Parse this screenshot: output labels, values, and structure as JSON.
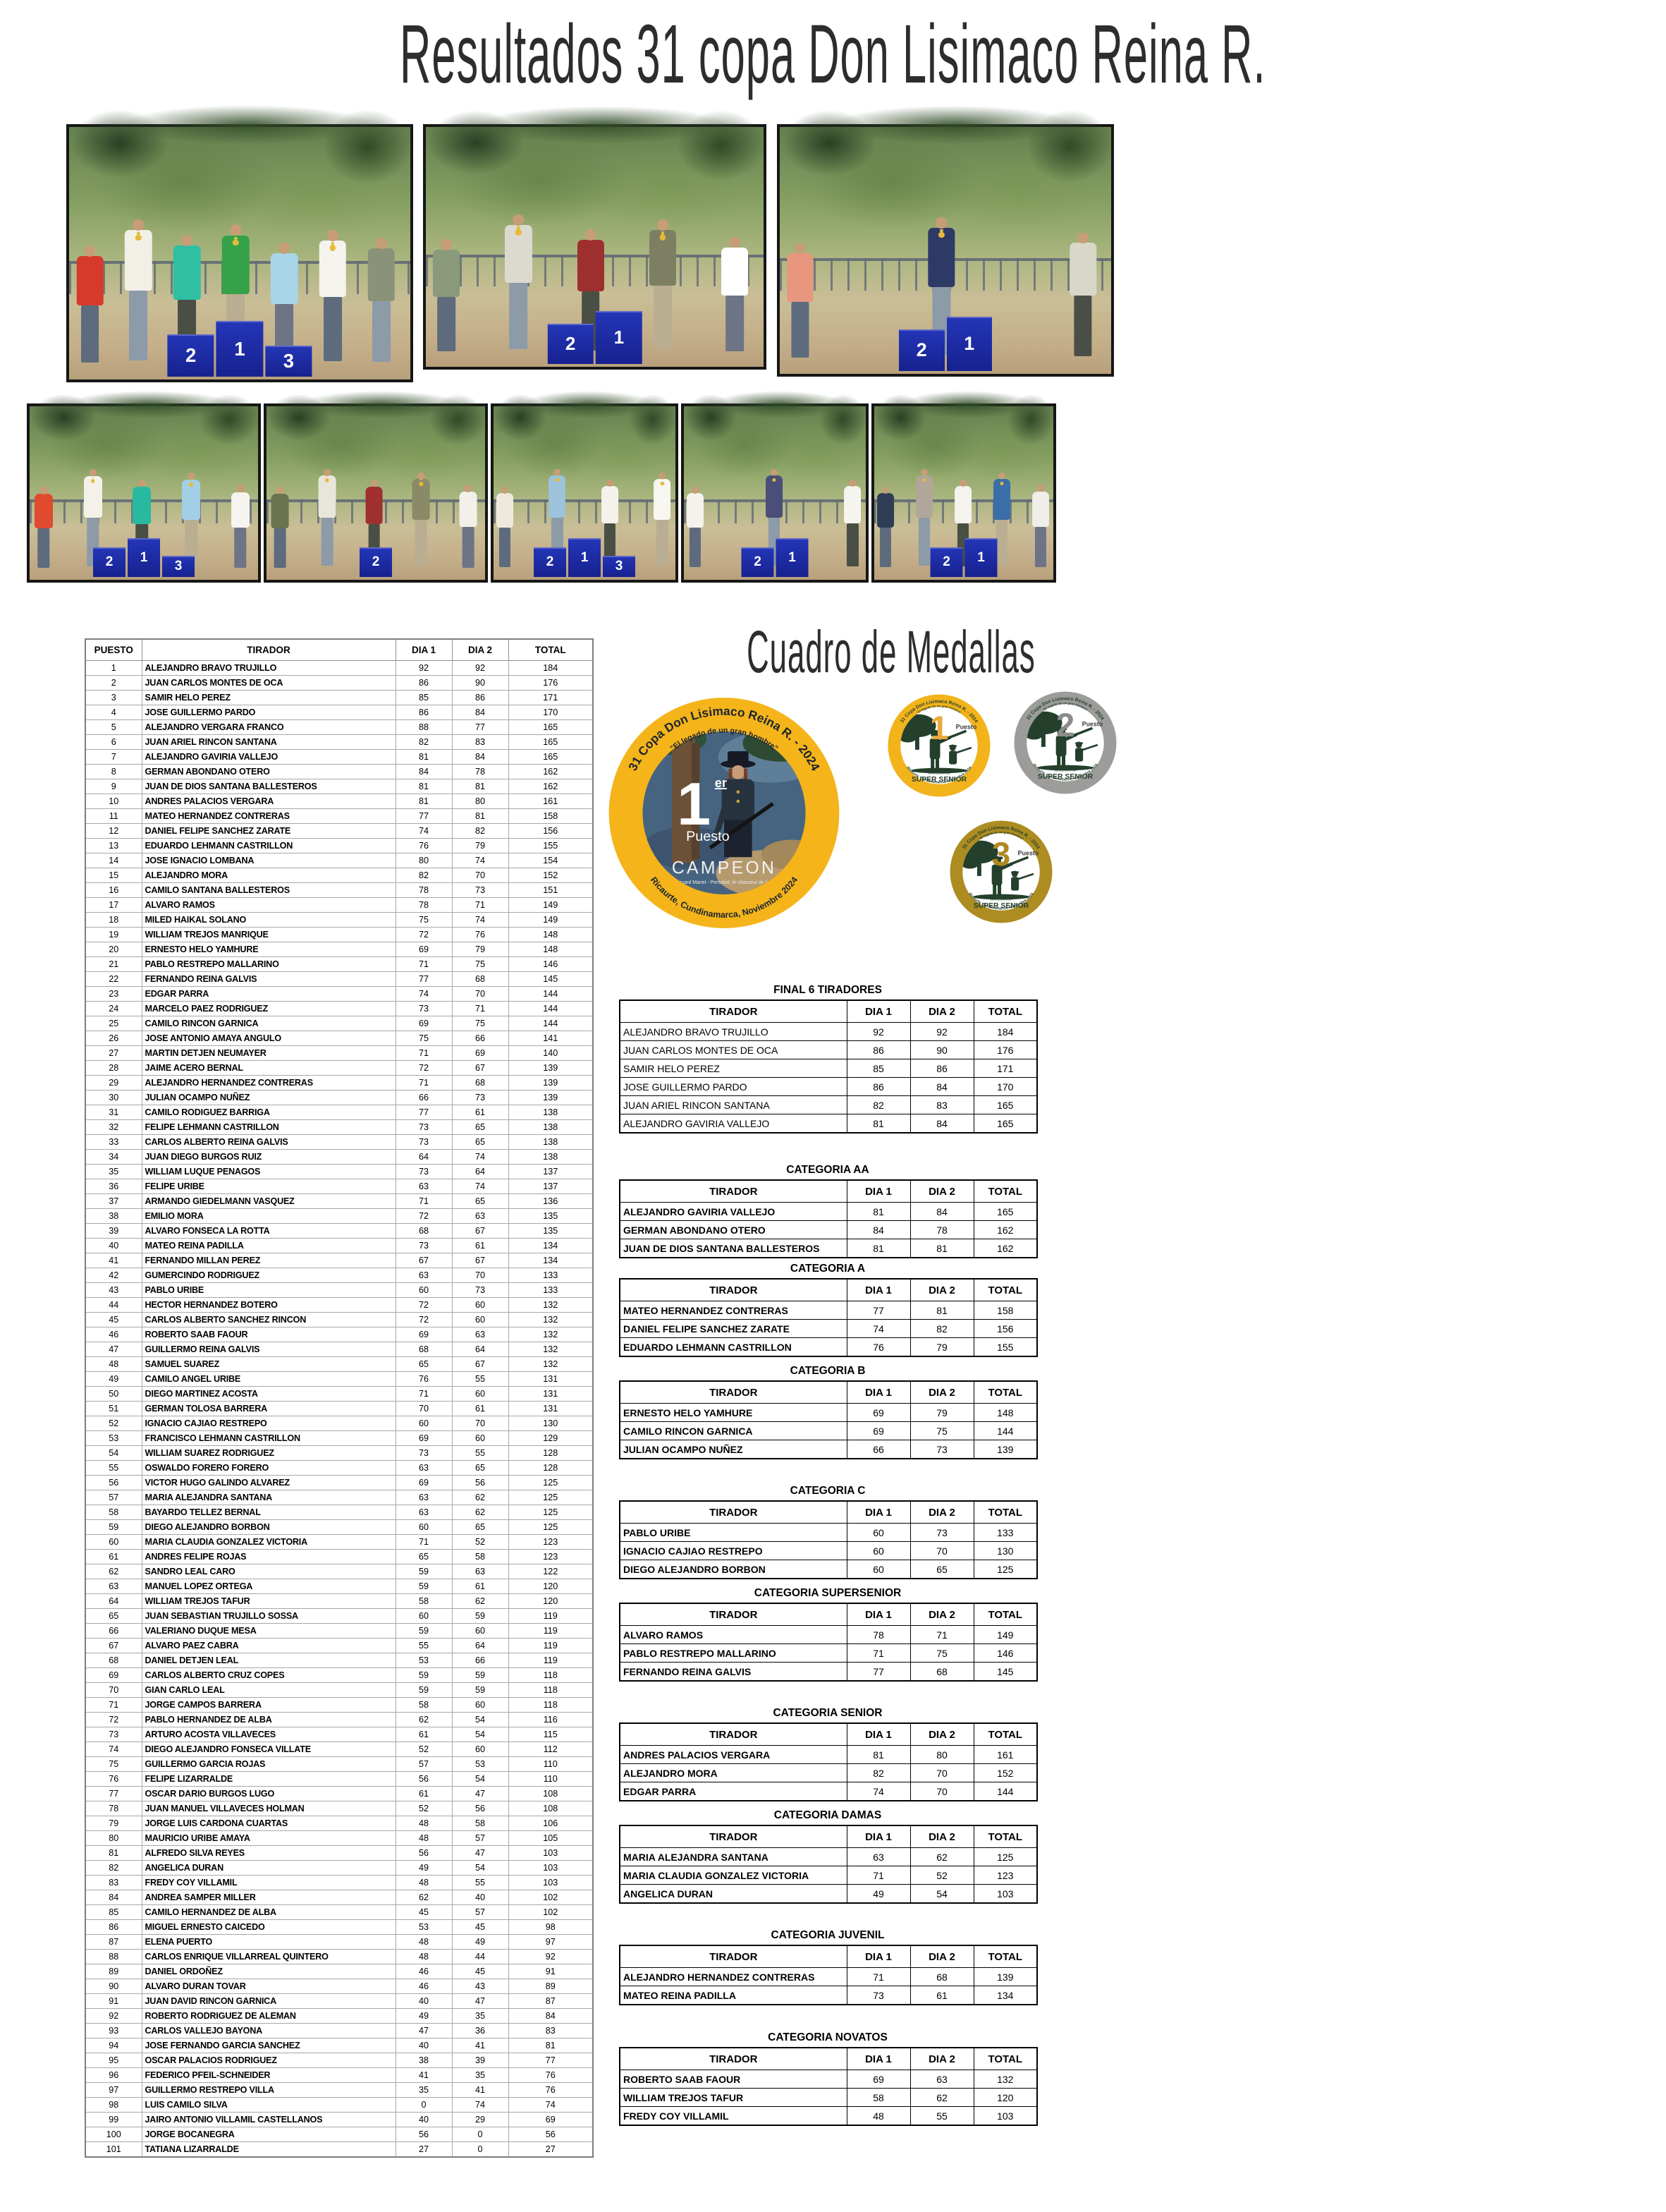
{
  "title": "Resultados 31 copa Don Lisimaco Reina R.",
  "medals_section": {
    "title": "Cuadro de Medallas",
    "big_medal": {
      "ring_text_top": "31 Copa Don Lisimaco Reina R. - 2024",
      "ring_subtitle": "\"El legado de un gran hombre\"",
      "place_number": "1",
      "place_suffix": "er",
      "place_label": "Puesto",
      "champion_label": "CAMPEON",
      "caption": "Édouard Manet - Pertuiset, le chasseur de lions",
      "ring_text_bottom": "Ricaurte, Cundinamarca, Noviembre 2024",
      "ring_color": "#F4B41A"
    },
    "small_medals": [
      {
        "number": "1",
        "label": "Puesto",
        "ring_text_top": "31 Copa Don Lisimaco Reina R. - 2024",
        "ring_subtitle": "\"El legado de un gran hombre\"",
        "category_line1": "CATEGORIA",
        "category_line2": "SUPER SENIOR",
        "ring_text_bottom": "Ricaurte, Cundinamarca, Noviembre 2024",
        "ring_color": "#F2B31B",
        "number_color": "#E9A93C"
      },
      {
        "number": "2",
        "label": "Puesto",
        "ring_text_top": "31 Copa Don Lisimaco Reina R. - 2024",
        "ring_subtitle": "\"El legado de un gran hombre\"",
        "category_line1": "CATEGORIA",
        "category_line2": "SUPER SENIOR",
        "ring_text_bottom": "Ricaurte, Cundinamarca, Noviembre 2024",
        "ring_color": "#9C9C9B",
        "number_color": "#8C8C8B"
      },
      {
        "number": "3",
        "label": "Puesto",
        "ring_text_top": "31 Copa Don Lisimaco Reina R. - 2024",
        "ring_subtitle": "\"El legado de un gran hombre\"",
        "category_line1": "CATEGORIA",
        "category_line2": "SUPER SENIOR",
        "ring_text_bottom": "Ricaurte, Cundinamarca, Noviembre 2024",
        "ring_color": "#AD8C21",
        "number_color": "#B0891F"
      }
    ]
  },
  "photos": {
    "row1": [
      {
        "podium": [
          "2",
          "1",
          "3"
        ],
        "shirts": [
          "#d63a2a",
          "#f2efe6",
          "#2fbfa3",
          "#35a24a",
          "#a8d4e8",
          "#f5f3ee",
          "#8a9379"
        ]
      },
      {
        "podium": [
          "2",
          "1"
        ],
        "shirts": [
          "#8a9a7a",
          "#dcd9cf",
          "#9e2f2f",
          "#7d7f62",
          "#ffffff"
        ]
      },
      {
        "podium": [
          "2",
          "1"
        ],
        "shirts": [
          "#e8967e",
          "#2e3a66",
          "#d8d8c8"
        ]
      }
    ],
    "row2": [
      {
        "podium": [
          "2",
          "1",
          "3"
        ],
        "shirts": [
          "#e04a2f",
          "#f4f1e8",
          "#29b9a0",
          "#a3cfe6",
          "#f6f4ef"
        ]
      },
      {
        "podium": [
          "2"
        ],
        "shirts": [
          "#6b7350",
          "#e8e6da",
          "#a03030",
          "#8a8a68",
          "#f2f0e8"
        ]
      },
      {
        "podium": [
          "2",
          "1",
          "3"
        ],
        "shirts": [
          "#efe9dd",
          "#9cc2dc",
          "#f4f2ea",
          "#f8f6f0"
        ]
      },
      {
        "podium": [
          "2",
          "1"
        ],
        "shirts": [
          "#f4f2ec",
          "#4a4e78",
          "#f6f4ee"
        ]
      },
      {
        "podium": [
          "2",
          "1"
        ],
        "shirts": [
          "#2e3d55",
          "#b0a79a",
          "#f5f3ed",
          "#3a6ea8",
          "#f0eee8"
        ]
      }
    ]
  },
  "main_table": {
    "headers": [
      "PUESTO",
      "TIRADOR",
      "DIA 1",
      "DIA 2",
      "TOTAL"
    ],
    "rows": [
      [
        1,
        "ALEJANDRO BRAVO TRUJILLO",
        92,
        92,
        184
      ],
      [
        2,
        "JUAN CARLOS MONTES DE OCA",
        86,
        90,
        176
      ],
      [
        3,
        "SAMIR HELO PEREZ",
        85,
        86,
        171
      ],
      [
        4,
        "JOSE GUILLERMO PARDO",
        86,
        84,
        170
      ],
      [
        5,
        "ALEJANDRO VERGARA FRANCO",
        88,
        77,
        165
      ],
      [
        6,
        "JUAN ARIEL RINCON SANTANA",
        82,
        83,
        165
      ],
      [
        7,
        "ALEJANDRO GAVIRIA VALLEJO",
        81,
        84,
        165
      ],
      [
        8,
        "GERMAN  ABONDANO OTERO",
        84,
        78,
        162
      ],
      [
        9,
        "JUAN DE DIOS SANTANA BALLESTEROS",
        81,
        81,
        162
      ],
      [
        10,
        "ANDRES PALACIOS VERGARA",
        81,
        80,
        161
      ],
      [
        11,
        "MATEO HERNANDEZ CONTRERAS",
        77,
        81,
        158
      ],
      [
        12,
        "DANIEL FELIPE SANCHEZ ZARATE",
        74,
        82,
        156
      ],
      [
        13,
        "EDUARDO LEHMANN CASTRILLON",
        76,
        79,
        155
      ],
      [
        14,
        "JOSE IGNACIO LOMBANA",
        80,
        74,
        154
      ],
      [
        15,
        "ALEJANDRO MORA",
        82,
        70,
        152
      ],
      [
        16,
        "CAMILO SANTANA BALLESTEROS",
        78,
        73,
        151
      ],
      [
        17,
        "ALVARO RAMOS",
        78,
        71,
        149
      ],
      [
        18,
        "MILED HAIKAL SOLANO",
        75,
        74,
        149
      ],
      [
        19,
        "WILLIAM TREJOS MANRIQUE",
        72,
        76,
        148
      ],
      [
        20,
        "ERNESTO HELO YAMHURE",
        69,
        79,
        148
      ],
      [
        21,
        "PABLO RESTREPO MALLARINO",
        71,
        75,
        146
      ],
      [
        22,
        "FERNANDO REINA GALVIS",
        77,
        68,
        145
      ],
      [
        23,
        "EDGAR PARRA",
        74,
        70,
        144
      ],
      [
        24,
        "MARCELO PAEZ RODRIGUEZ",
        73,
        71,
        144
      ],
      [
        25,
        "CAMILO RINCON GARNICA",
        69,
        75,
        144
      ],
      [
        26,
        "JOSE ANTONIO AMAYA ANGULO",
        75,
        66,
        141
      ],
      [
        27,
        "MARTIN DETJEN NEUMAYER",
        71,
        69,
        140
      ],
      [
        28,
        "JAIME ACERO BERNAL",
        72,
        67,
        139
      ],
      [
        29,
        "ALEJANDRO HERNANDEZ CONTRERAS",
        71,
        68,
        139
      ],
      [
        30,
        "JULIAN OCAMPO NUÑEZ",
        66,
        73,
        139
      ],
      [
        31,
        "CAMILO RODIGUEZ BARRIGA",
        77,
        61,
        138
      ],
      [
        32,
        "FELIPE LEHMANN CASTRILLON",
        73,
        65,
        138
      ],
      [
        33,
        "CARLOS ALBERTO REINA GALVIS",
        73,
        65,
        138
      ],
      [
        34,
        "JUAN DIEGO BURGOS RUIZ",
        64,
        74,
        138
      ],
      [
        35,
        "WILLIAM LUQUE PENAGOS",
        73,
        64,
        137
      ],
      [
        36,
        "FELIPE URIBE",
        63,
        74,
        137
      ],
      [
        37,
        "ARMANDO  GIEDELMANN VASQUEZ",
        71,
        65,
        136
      ],
      [
        38,
        "EMILIO MORA",
        72,
        63,
        135
      ],
      [
        39,
        "ALVARO FONSECA LA ROTTA",
        68,
        67,
        135
      ],
      [
        40,
        "MATEO REINA PADILLA",
        73,
        61,
        134
      ],
      [
        41,
        "FERNANDO MILLAN PEREZ",
        67,
        67,
        134
      ],
      [
        42,
        "GUMERCINDO RODRIGUEZ",
        63,
        70,
        133
      ],
      [
        43,
        "PABLO URIBE",
        60,
        73,
        133
      ],
      [
        44,
        "HECTOR HERNANDEZ BOTERO",
        72,
        60,
        132
      ],
      [
        45,
        "CARLOS ALBERTO SANCHEZ RINCON",
        72,
        60,
        132
      ],
      [
        46,
        "ROBERTO SAAB FAOUR",
        69,
        63,
        132
      ],
      [
        47,
        "GUILLERMO REINA GALVIS",
        68,
        64,
        132
      ],
      [
        48,
        "SAMUEL SUAREZ",
        65,
        67,
        132
      ],
      [
        49,
        "CAMILO ANGEL URIBE",
        76,
        55,
        131
      ],
      [
        50,
        "DIEGO MARTINEZ ACOSTA",
        71,
        60,
        131
      ],
      [
        51,
        "GERMAN TOLOSA BARRERA",
        70,
        61,
        131
      ],
      [
        52,
        "IGNACIO CAJIAO RESTREPO",
        60,
        70,
        130
      ],
      [
        53,
        "FRANCISCO LEHMANN CASTRILLON",
        69,
        60,
        129
      ],
      [
        54,
        "WILLIAM SUAREZ RODRIGUEZ",
        73,
        55,
        128
      ],
      [
        55,
        "OSWALDO FORERO FORERO",
        63,
        65,
        128
      ],
      [
        56,
        "VICTOR HUGO GALINDO ALVAREZ",
        69,
        56,
        125
      ],
      [
        57,
        "MARIA ALEJANDRA SANTANA",
        63,
        62,
        125
      ],
      [
        58,
        "BAYARDO TELLEZ BERNAL",
        63,
        62,
        125
      ],
      [
        59,
        "DIEGO ALEJANDRO BORBON",
        60,
        65,
        125
      ],
      [
        60,
        "MARIA CLAUDIA GONZALEZ VICTORIA",
        71,
        52,
        123
      ],
      [
        61,
        "ANDRES FELIPE ROJAS",
        65,
        58,
        123
      ],
      [
        62,
        "SANDRO LEAL CARO",
        59,
        63,
        122
      ],
      [
        63,
        "MANUEL LOPEZ ORTEGA",
        59,
        61,
        120
      ],
      [
        64,
        "WILLIAM TREJOS TAFUR",
        58,
        62,
        120
      ],
      [
        65,
        "JUAN SEBASTIAN TRUJILLO SOSSA",
        60,
        59,
        119
      ],
      [
        66,
        "VALERIANO DUQUE MESA",
        59,
        60,
        119
      ],
      [
        67,
        "ALVARO PAEZ CABRA",
        55,
        64,
        119
      ],
      [
        68,
        "DANIEL DETJEN LEAL",
        53,
        66,
        119
      ],
      [
        69,
        "CARLOS ALBERTO CRUZ COPES",
        59,
        59,
        118
      ],
      [
        70,
        "GIAN CARLO LEAL",
        59,
        59,
        118
      ],
      [
        71,
        "JORGE CAMPOS BARRERA",
        58,
        60,
        118
      ],
      [
        72,
        "PABLO HERNANDEZ DE ALBA",
        62,
        54,
        116
      ],
      [
        73,
        "ARTURO ACOSTA VILLAVECES",
        61,
        54,
        115
      ],
      [
        74,
        "DIEGO ALEJANDRO FONSECA VILLATE",
        52,
        60,
        112
      ],
      [
        75,
        "GUILLERMO GARCIA ROJAS",
        57,
        53,
        110
      ],
      [
        76,
        "FELIPE LIZARRALDE",
        56,
        54,
        110
      ],
      [
        77,
        "OSCAR DARIO BURGOS LUGO",
        61,
        47,
        108
      ],
      [
        78,
        "JUAN MANUEL VILLAVECES HOLMAN",
        52,
        56,
        108
      ],
      [
        79,
        "JORGE LUIS CARDONA CUARTAS",
        48,
        58,
        106
      ],
      [
        80,
        "MAURICIO URIBE AMAYA",
        48,
        57,
        105
      ],
      [
        81,
        "ALFREDO SILVA REYES",
        56,
        47,
        103
      ],
      [
        82,
        "ANGELICA DURAN",
        49,
        54,
        103
      ],
      [
        83,
        "FREDY COY VILLAMIL",
        48,
        55,
        103
      ],
      [
        84,
        "ANDREA SAMPER MILLER",
        62,
        40,
        102
      ],
      [
        85,
        "CAMILO HERNANDEZ DE ALBA",
        45,
        57,
        102
      ],
      [
        86,
        "MIGUEL ERNESTO CAICEDO",
        53,
        45,
        98
      ],
      [
        87,
        "ELENA PUERTO",
        48,
        49,
        97
      ],
      [
        88,
        "CARLOS ENRIQUE VILLARREAL QUINTERO",
        48,
        44,
        92
      ],
      [
        89,
        "DANIEL ORDOÑEZ",
        46,
        45,
        91
      ],
      [
        90,
        "ALVARO DURAN TOVAR",
        46,
        43,
        89
      ],
      [
        91,
        "JUAN DAVID RINCON GARNICA",
        40,
        47,
        87
      ],
      [
        92,
        "ROBERTO RODRIGUEZ DE ALEMAN",
        49,
        35,
        84
      ],
      [
        93,
        "CARLOS VALLEJO BAYONA",
        47,
        36,
        83
      ],
      [
        94,
        "JOSE FERNANDO GARCIA SANCHEZ",
        40,
        41,
        81
      ],
      [
        95,
        "OSCAR PALACIOS RODRIGUEZ",
        38,
        39,
        77
      ],
      [
        96,
        "FEDERICO PFEIL-SCHNEIDER",
        41,
        35,
        76
      ],
      [
        97,
        "GUILLERMO RESTREPO VILLA",
        35,
        41,
        76
      ],
      [
        98,
        "LUIS CAMILO SILVA",
        0,
        74,
        74
      ],
      [
        99,
        "JAIRO ANTONIO VILLAMIL CASTELLANOS",
        40,
        29,
        69
      ],
      [
        100,
        "JORGE BOCANEGRA",
        56,
        0,
        56
      ],
      [
        101,
        "TATIANA LIZARRALDE",
        27,
        0,
        27
      ]
    ]
  },
  "category_tables": [
    {
      "title": "FINAL 6 TIRADORES",
      "headers": [
        "TIRADOR",
        "DIA 1",
        "DIA 2",
        "TOTAL"
      ],
      "bold_names": false,
      "rows": [
        [
          "ALEJANDRO BRAVO TRUJILLO",
          92,
          92,
          184
        ],
        [
          "JUAN CARLOS MONTES DE OCA",
          86,
          90,
          176
        ],
        [
          "SAMIR HELO PEREZ",
          85,
          86,
          171
        ],
        [
          "JOSE GUILLERMO PARDO",
          86,
          84,
          170
        ],
        [
          "JUAN ARIEL RINCON SANTANA",
          82,
          83,
          165
        ],
        [
          "ALEJANDRO GAVIRIA VALLEJO",
          81,
          84,
          165
        ]
      ]
    },
    {
      "title": "CATEGORIA AA",
      "headers": [
        "TIRADOR",
        "DIA 1",
        "DIA 2",
        "TOTAL"
      ],
      "bold_names": true,
      "rows": [
        [
          "ALEJANDRO GAVIRIA VALLEJO",
          81,
          84,
          165
        ],
        [
          "GERMAN  ABONDANO OTERO",
          84,
          78,
          162
        ],
        [
          "JUAN DE DIOS SANTANA BALLESTEROS",
          81,
          81,
          162
        ]
      ]
    },
    {
      "title": "CATEGORIA A",
      "headers": [
        "TIRADOR",
        "DIA 1",
        "DIA 2",
        "TOTAL"
      ],
      "bold_names": true,
      "rows": [
        [
          "MATEO HERNANDEZ CONTRERAS",
          77,
          81,
          158
        ],
        [
          "DANIEL FELIPE SANCHEZ ZARATE",
          74,
          82,
          156
        ],
        [
          "EDUARDO LEHMANN CASTRILLON",
          76,
          79,
          155
        ]
      ]
    },
    {
      "title": "CATEGORIA B",
      "headers": [
        "TIRADOR",
        "DIA 1",
        "DIA 2",
        "TOTAL"
      ],
      "bold_names": true,
      "rows": [
        [
          "ERNESTO HELO YAMHURE",
          69,
          79,
          148
        ],
        [
          "CAMILO RINCON GARNICA",
          69,
          75,
          144
        ],
        [
          "JULIAN OCAMPO NUÑEZ",
          66,
          73,
          139
        ]
      ]
    },
    {
      "title": "CATEGORIA C",
      "headers": [
        "TIRADOR",
        "DIA 1",
        "DIA 2",
        "TOTAL"
      ],
      "bold_names": true,
      "rows": [
        [
          "PABLO URIBE",
          60,
          73,
          133
        ],
        [
          "IGNACIO CAJIAO RESTREPO",
          60,
          70,
          130
        ],
        [
          "DIEGO ALEJANDRO BORBON",
          60,
          65,
          125
        ]
      ]
    },
    {
      "title": "CATEGORIA SUPERSENIOR",
      "headers": [
        "TIRADOR",
        "DIA 1",
        "DIA 2",
        "TOTAL"
      ],
      "bold_names": true,
      "rows": [
        [
          "ALVARO RAMOS",
          78,
          71,
          149
        ],
        [
          "PABLO RESTREPO MALLARINO",
          71,
          75,
          146
        ],
        [
          "FERNANDO REINA GALVIS",
          77,
          68,
          145
        ]
      ]
    },
    {
      "title": "CATEGORIA SENIOR",
      "headers": [
        "TIRADOR",
        "DIA 1",
        "DIA 2",
        "TOTAL"
      ],
      "bold_names": true,
      "rows": [
        [
          "ANDRES PALACIOS VERGARA",
          81,
          80,
          161
        ],
        [
          "ALEJANDRO MORA",
          82,
          70,
          152
        ],
        [
          "EDGAR PARRA",
          74,
          70,
          144
        ]
      ]
    },
    {
      "title": "CATEGORIA DAMAS",
      "headers": [
        "TIRADOR",
        "DIA 1",
        "DIA 2",
        "TOTAL"
      ],
      "bold_names": true,
      "rows": [
        [
          "MARIA ALEJANDRA SANTANA",
          63,
          62,
          125
        ],
        [
          "MARIA CLAUDIA GONZALEZ VICTORIA",
          71,
          52,
          123
        ],
        [
          "ANGELICA DURAN",
          49,
          54,
          103
        ]
      ]
    },
    {
      "title": "CATEGORIA JUVENIL",
      "headers": [
        "TIRADOR",
        "DIA 1",
        "DIA 2",
        "TOTAL"
      ],
      "bold_names": true,
      "rows": [
        [
          "ALEJANDRO HERNANDEZ CONTRERAS",
          71,
          68,
          139
        ],
        [
          "MATEO REINA PADILLA",
          73,
          61,
          134
        ]
      ]
    },
    {
      "title": "CATEGORIA NOVATOS",
      "headers": [
        "TIRADOR",
        "DIA 1",
        "DIA 2",
        "TOTAL"
      ],
      "bold_names": true,
      "rows": [
        [
          "ROBERTO SAAB FAOUR",
          69,
          63,
          132
        ],
        [
          "WILLIAM TREJOS TAFUR",
          58,
          62,
          120
        ],
        [
          "FREDY COY VILLAMIL",
          48,
          55,
          103
        ]
      ]
    }
  ]
}
